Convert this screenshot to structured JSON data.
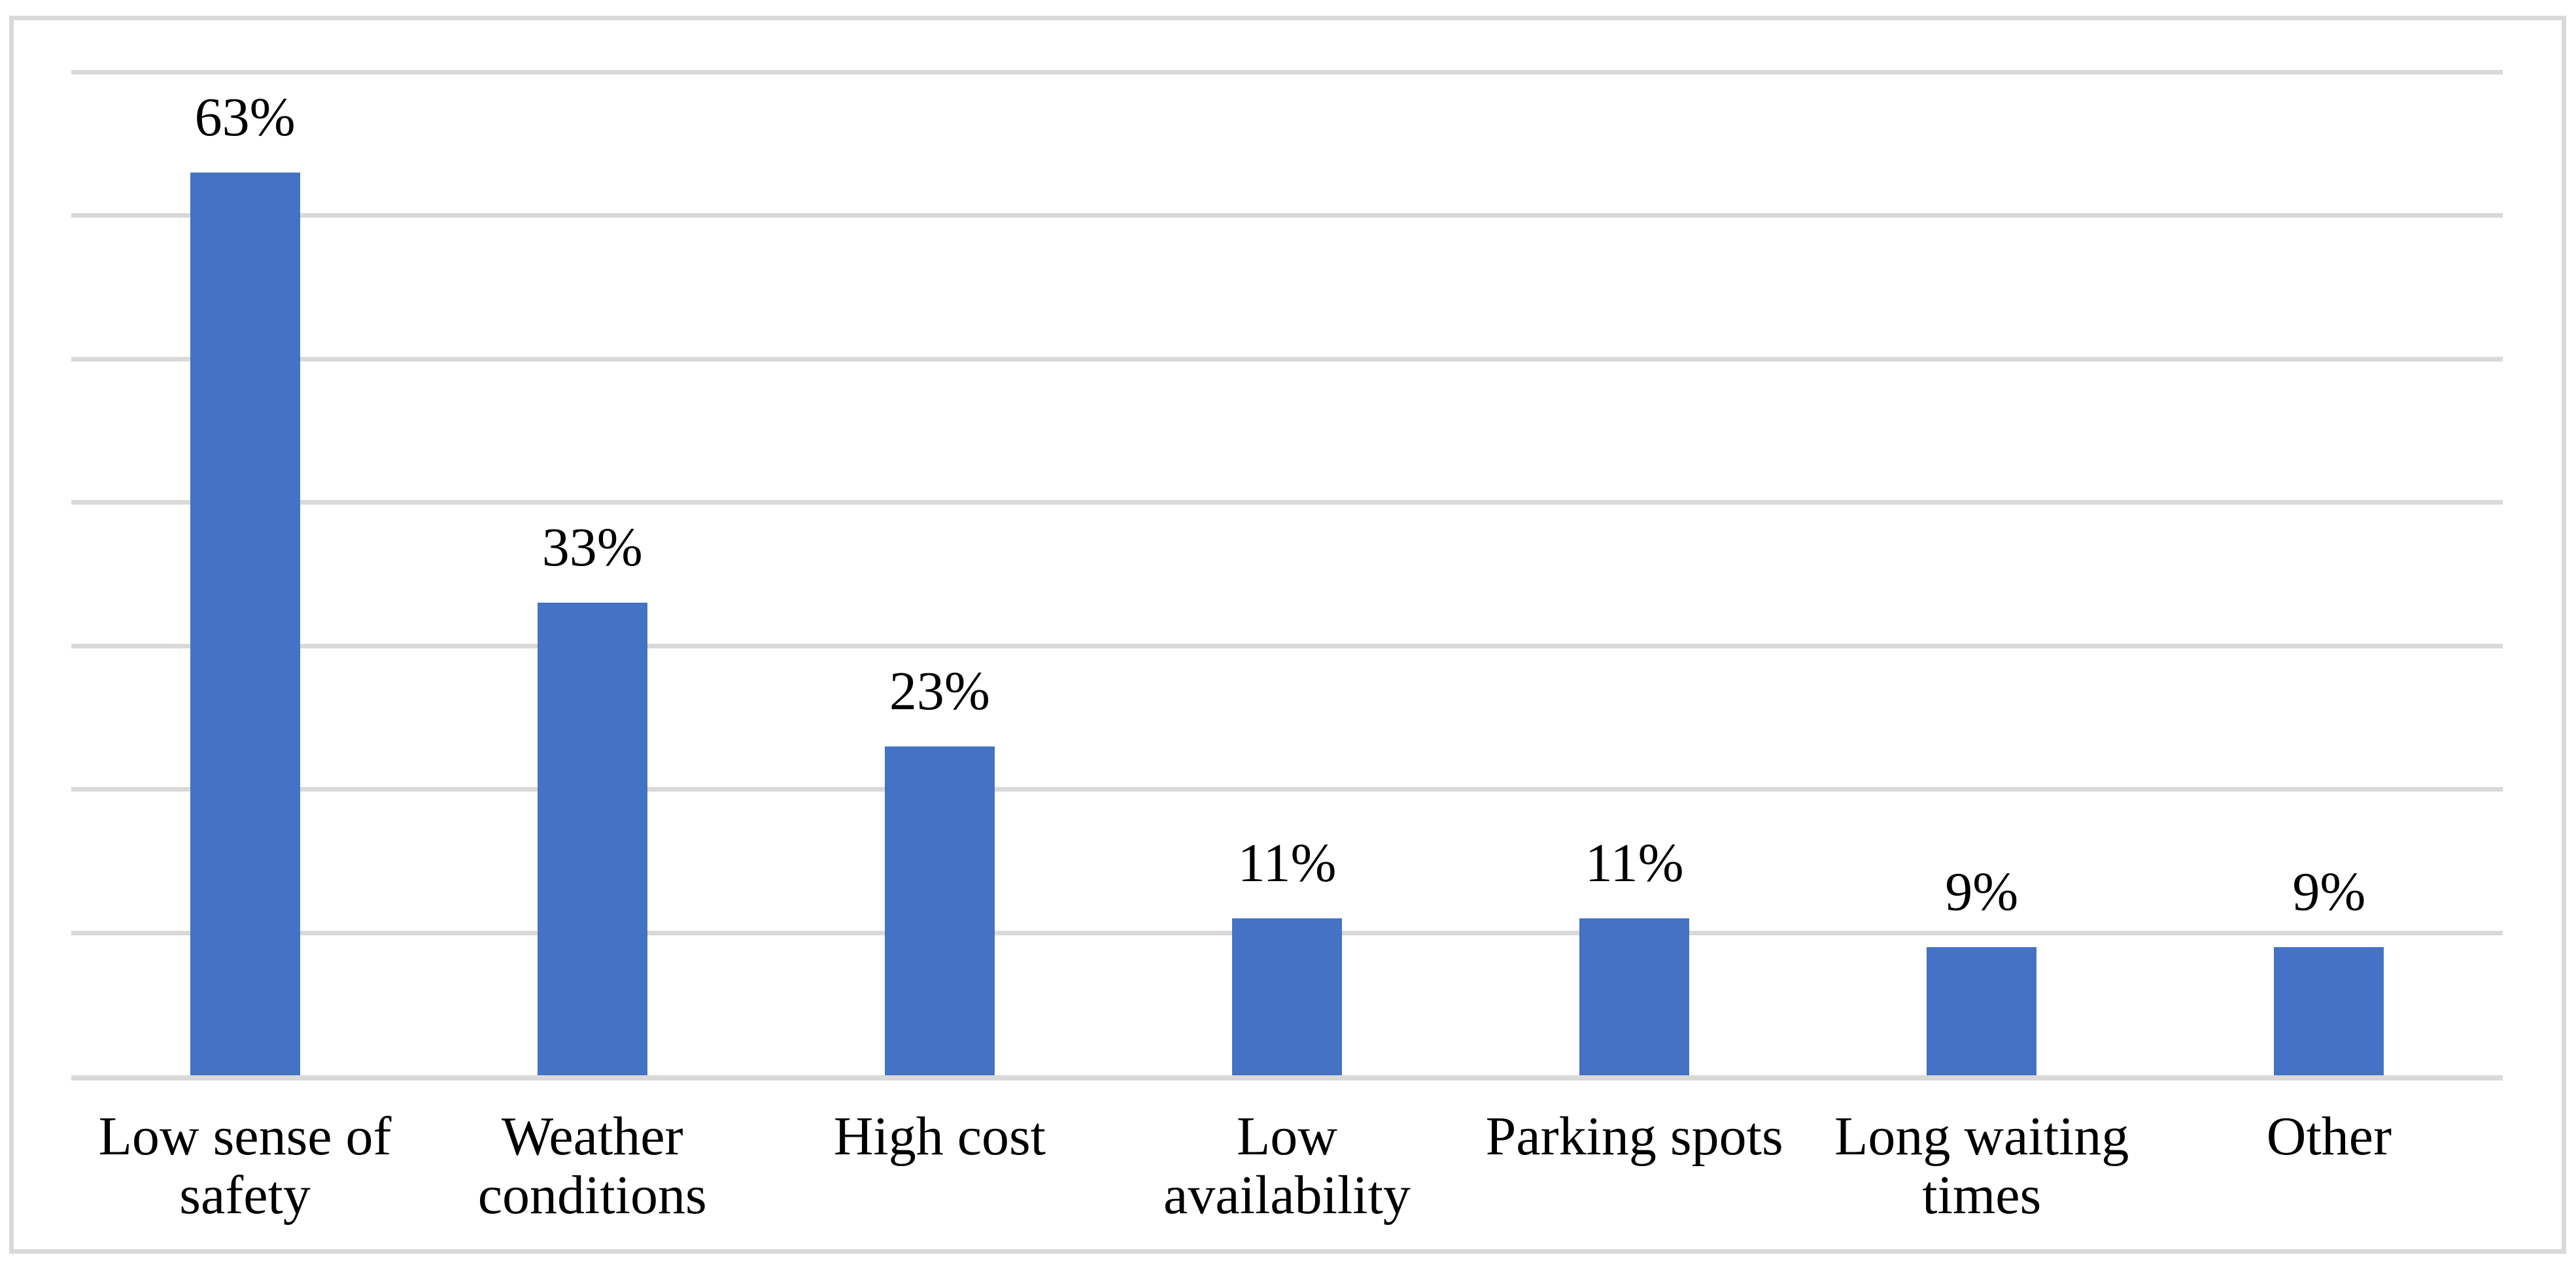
{
  "chart_data": {
    "type": "bar",
    "title": "",
    "xlabel": "",
    "ylabel": "",
    "categories": [
      "Low sense of safety",
      "Weather conditions",
      "High cost",
      "Low availability",
      "Parking spots",
      "Long waiting times",
      "Other"
    ],
    "category_lines": [
      [
        "Low sense of",
        "safety"
      ],
      [
        "Weather",
        "conditions"
      ],
      [
        "High cost"
      ],
      [
        "Low availability"
      ],
      [
        "Parking spots"
      ],
      [
        "Long waiting",
        "times"
      ],
      [
        "Other"
      ]
    ],
    "values": [
      63,
      33,
      23,
      11,
      11,
      9,
      9
    ],
    "data_labels": [
      "63%",
      "33%",
      "23%",
      "11%",
      "11%",
      "9%",
      "9%"
    ],
    "ylim": [
      0,
      70
    ],
    "gridline_interval": 10,
    "grid": true,
    "legend": false,
    "y_tick_labels_visible": false,
    "colors": {
      "bar": "#4472C4",
      "gridline": "#D9D9D9",
      "axis_line": "#D9D9D9",
      "frame_border": "#D9D9D9",
      "text": "#000000",
      "background": "#FFFFFF"
    }
  }
}
